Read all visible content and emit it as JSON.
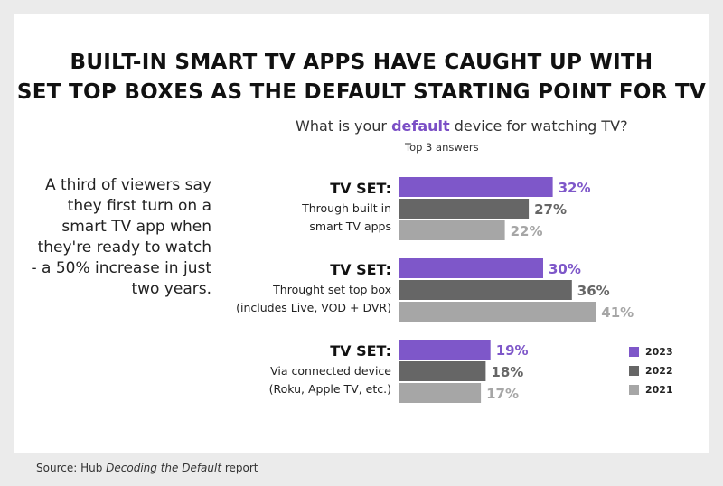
{
  "title": {
    "line1": "BUILT-IN SMART TV APPS HAVE CAUGHT UP WITH",
    "line2": "SET TOP BOXES AS THE DEFAULT STARTING POINT FOR TV"
  },
  "question": {
    "before": "What is your ",
    "emphasis": "default",
    "after": " device for watching TV?",
    "sub": "Top 3 answers"
  },
  "note": "A third of viewers say they first turn on a smart TV app when they're ready to watch - a 50% increase in just two years.",
  "source": {
    "prefix": "Source: Hub ",
    "italic": "Decoding the Default",
    "suffix": " report"
  },
  "colors": {
    "2023": "#7e57c9",
    "2022": "#666666",
    "2021": "#a6a6a6"
  },
  "chart_data": {
    "type": "bar",
    "orientation": "horizontal",
    "title": "What is your default device for watching TV?",
    "subtitle": "Top 3 answers",
    "categories": [
      {
        "title": "TV SET:",
        "sub": [
          "Through built in",
          "smart TV apps"
        ]
      },
      {
        "title": "TV SET:",
        "sub": [
          "Throught set top box",
          "(includes Live, VOD + DVR)"
        ]
      },
      {
        "title": "TV SET:",
        "sub": [
          "Via connected device",
          "(Roku, Apple TV, etc.)"
        ]
      }
    ],
    "series": [
      {
        "name": "2023",
        "values": [
          32,
          30,
          19
        ]
      },
      {
        "name": "2022",
        "values": [
          27,
          36,
          18
        ]
      },
      {
        "name": "2021",
        "values": [
          22,
          41,
          17
        ]
      }
    ],
    "value_suffix": "%",
    "legend": "bottom-right"
  }
}
